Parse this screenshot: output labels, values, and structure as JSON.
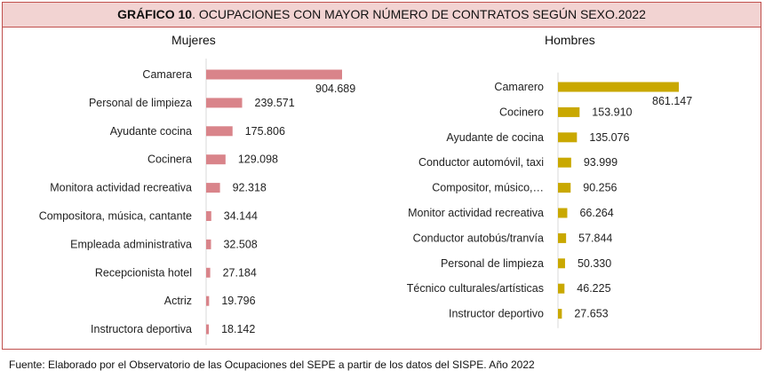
{
  "title": {
    "bold": "GRÁFICO 10",
    "rest": ". OCUPACIONES CON MAYOR NÚMERO DE CONTRATOS SEGÚN SEXO.2022"
  },
  "footer": "Fuente: Elaborado por el Observatorio de las Ocupaciones del SEPE a partir de los datos del SISPE. Año 2022",
  "colors": {
    "mujeres": "#d9848a",
    "hombres": "#c9a800",
    "border": "#c0504d",
    "header_bg": "#f2d3d2"
  },
  "chart_data": [
    {
      "type": "bar",
      "orientation": "horizontal",
      "title": "Mujeres",
      "categories": [
        "Camarera",
        "Personal de limpieza",
        "Ayudante cocina",
        "Cocinera",
        "Monitora actividad recreativa",
        "Compositora, música, cantante",
        "Empleada administrativa",
        "Recepcionista hotel",
        "Actriz",
        "Instructora deportiva"
      ],
      "values": [
        904689,
        239571,
        175806,
        129098,
        92318,
        34144,
        32508,
        27184,
        19796,
        18142
      ],
      "labels": [
        "904.689",
        "239.571",
        "175.806",
        "129.098",
        "92.318",
        "34.144",
        "32.508",
        "27.184",
        "19.796",
        "18.142"
      ],
      "xlim": [
        0,
        904689
      ]
    },
    {
      "type": "bar",
      "orientation": "horizontal",
      "title": "Hombres",
      "categories": [
        "Camarero",
        "Cocinero",
        "Ayudante de cocina",
        "Conductor automóvil, taxi",
        "Compositor, músico,…",
        "Monitor actividad recreativa",
        "Conductor autobús/tranvía",
        "Personal de limpieza",
        "Técnico culturales/artísticas",
        "Instructor deportivo"
      ],
      "values": [
        861147,
        153910,
        135076,
        93999,
        90256,
        66264,
        57844,
        50330,
        46225,
        27653
      ],
      "labels": [
        "861.147",
        "153.910",
        "135.076",
        "93.999",
        "90.256",
        "66.264",
        "57.844",
        "50.330",
        "46.225",
        "27.653"
      ],
      "xlim": [
        0,
        861147
      ]
    }
  ]
}
